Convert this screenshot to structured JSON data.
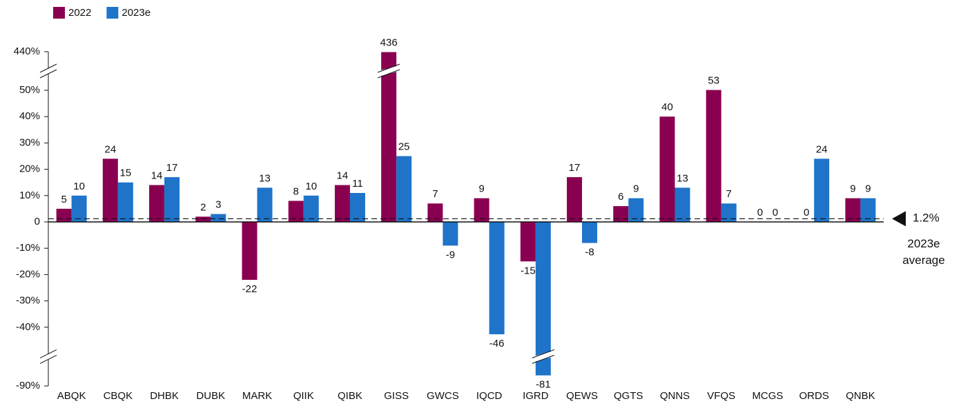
{
  "chart_data": {
    "type": "bar",
    "categories": [
      "ABQK",
      "CBQK",
      "DHBK",
      "DUBK",
      "MARK",
      "QIIK",
      "QIBK",
      "GISS",
      "GWCS",
      "IQCD",
      "IGRD",
      "QEWS",
      "QGTS",
      "QNNS",
      "VFQS",
      "MCGS",
      "ORDS",
      "QNBK"
    ],
    "series": [
      {
        "name": "2022",
        "color": "#8a0050",
        "values": [
          5,
          24,
          14,
          2,
          -22,
          8,
          14,
          436,
          7,
          9,
          -15,
          17,
          6,
          40,
          53,
          0,
          0,
          9
        ]
      },
      {
        "name": "2023e",
        "color": "#1f74c9",
        "values": [
          10,
          15,
          17,
          3,
          13,
          10,
          11,
          25,
          -9,
          -46,
          -81,
          -8,
          9,
          13,
          7,
          0,
          24,
          9
        ]
      }
    ],
    "ylim": [
      -90,
      440
    ],
    "yticks": [
      {
        "value": -90,
        "label": "-90%"
      },
      {
        "value": -40,
        "label": "-40%"
      },
      {
        "value": -30,
        "label": "-30%"
      },
      {
        "value": -20,
        "label": "-20%"
      },
      {
        "value": -10,
        "label": "-10%"
      },
      0,
      {
        "value": 10,
        "label": "10%"
      },
      {
        "value": 20,
        "label": "20%"
      },
      {
        "value": 30,
        "label": "30%"
      },
      {
        "value": 40,
        "label": "40%"
      },
      {
        "value": 50,
        "label": "50%"
      },
      {
        "value": 440,
        "label": "440%"
      }
    ],
    "axis_break": true,
    "legend": "top-left",
    "average_line": {
      "value": 1.2,
      "label": "1.2%",
      "note": "2023e average"
    }
  }
}
